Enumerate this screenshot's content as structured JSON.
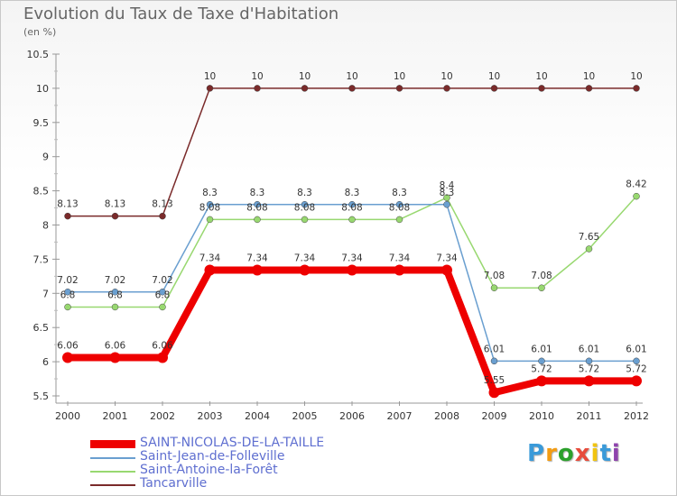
{
  "chart_data": {
    "type": "line",
    "title": "Evolution du Taux de Taxe d'Habitation",
    "unit_label": "(en %)",
    "x": [
      "2000",
      "2001",
      "2002",
      "2003",
      "2004",
      "2005",
      "2006",
      "2007",
      "2008",
      "2009",
      "2010",
      "2011",
      "2012"
    ],
    "y_ticks": [
      "5.5",
      "6",
      "6.5",
      "7",
      "7.5",
      "8",
      "8.5",
      "9",
      "9.5",
      "10",
      "10.5"
    ],
    "ylim": [
      5.5,
      10.5
    ],
    "grid": false,
    "series": [
      {
        "name": "SAINT-NICOLAS-DE-LA-TAILLE",
        "color": "#ee0000",
        "values": [
          6.06,
          6.06,
          6.06,
          7.34,
          7.34,
          7.34,
          7.34,
          7.34,
          7.34,
          5.55,
          5.72,
          5.72,
          5.72
        ],
        "labels": [
          "6.06",
          "6.06",
          "6.06",
          "7.34",
          "7.34",
          "7.34",
          "7.34",
          "7.34",
          "7.34",
          "5.55",
          "5.72",
          "5.72",
          "5.72"
        ]
      },
      {
        "name": "Saint-Jean-de-Folleville",
        "color": "#6a9fd0",
        "values": [
          7.02,
          7.02,
          7.02,
          8.3,
          8.3,
          8.3,
          8.3,
          8.3,
          8.3,
          6.01,
          6.01,
          6.01,
          6.01
        ],
        "labels": [
          "7.02",
          "7.02",
          "7.02",
          "8.3",
          "8.3",
          "8.3",
          "8.3",
          "8.3",
          "8.3",
          "6.01",
          "6.01",
          "6.01",
          "6.01"
        ]
      },
      {
        "name": "Saint-Antoine-la-Forêt",
        "color": "#98d870",
        "values": [
          6.8,
          6.8,
          6.8,
          8.08,
          8.08,
          8.08,
          8.08,
          8.08,
          8.4,
          7.08,
          7.08,
          7.65,
          8.42
        ],
        "labels": [
          "6.8",
          "6.8",
          "6.8",
          "8.08",
          "8.08",
          "8.08",
          "8.08",
          "8.08",
          "8.4",
          "7.08",
          "7.08",
          "7.65",
          "8.42"
        ]
      },
      {
        "name": "Tancarville",
        "color": "#7a2a2a",
        "values": [
          8.13,
          8.13,
          8.13,
          10,
          10,
          10,
          10,
          10,
          10,
          10,
          10,
          10,
          10
        ],
        "labels": [
          "8.13",
          "8.13",
          "8.13",
          "10",
          "10",
          "10",
          "10",
          "10",
          "10",
          "10",
          "10",
          "10",
          "10"
        ]
      }
    ]
  },
  "legend": [
    {
      "label": "SAINT-NICOLAS-DE-LA-TAILLE",
      "color": "#ee0000"
    },
    {
      "label": "Saint-Jean-de-Folleville",
      "color": "#6a9fd0"
    },
    {
      "label": "Saint-Antoine-la-Forêt",
      "color": "#98d870"
    },
    {
      "label": "Tancarville",
      "color": "#7a2a2a"
    }
  ],
  "logo": {
    "text": "Proxiti",
    "letters": [
      "P",
      "r",
      "o",
      "x",
      "i",
      "t",
      "i"
    ],
    "colors": [
      "#3a9ad9",
      "#f39c12",
      "#2ca02c",
      "#e74c3c",
      "#f1c40f",
      "#3a9ad9",
      "#8e44ad"
    ]
  }
}
